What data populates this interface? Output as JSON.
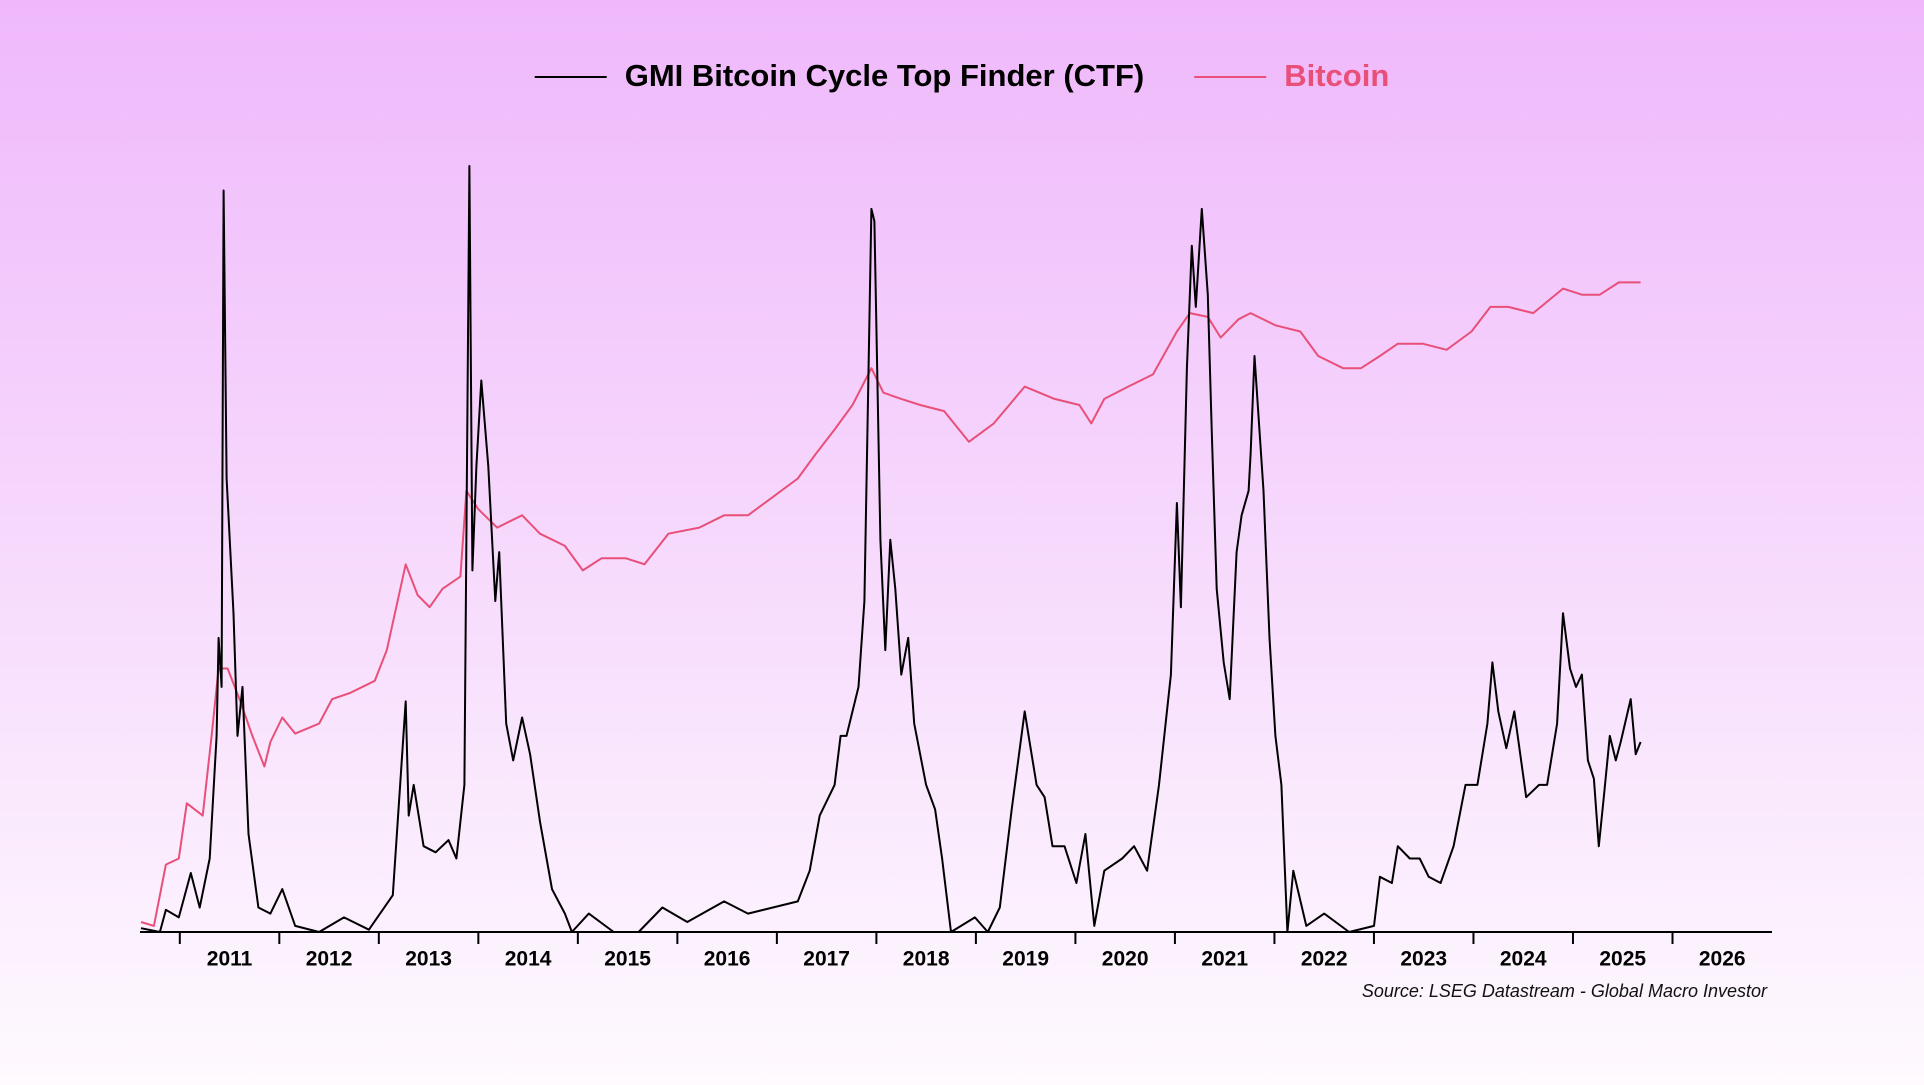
{
  "chart_data": {
    "type": "line",
    "series": [
      {
        "name": "GMI Bitcoin Cycle Top Finder (CTF)",
        "color": "#000000",
        "x": [
          2010.61,
          2010.8,
          2010.86,
          2010.99,
          2011.11,
          2011.2,
          2011.3,
          2011.37,
          2011.39,
          2011.42,
          2011.44,
          2011.47,
          2011.54,
          2011.58,
          2011.63,
          2011.69,
          2011.79,
          2011.91,
          2012.03,
          2012.16,
          2012.4,
          2012.65,
          2012.9,
          2013.14,
          2013.27,
          2013.3,
          2013.35,
          2013.45,
          2013.57,
          2013.7,
          2013.78,
          2013.86,
          2013.91,
          2013.94,
          2013.98,
          2014.03,
          2014.1,
          2014.17,
          2014.21,
          2014.28,
          2014.35,
          2014.44,
          2014.52,
          2014.62,
          2014.74,
          2014.87,
          2014.94,
          2015.11,
          2015.36,
          2015.61,
          2015.85,
          2016.1,
          2016.47,
          2016.71,
          2016.96,
          2017.21,
          2017.33,
          2017.43,
          2017.58,
          2017.64,
          2017.7,
          2017.82,
          2017.88,
          2017.95,
          2017.98,
          2018.04,
          2018.09,
          2018.14,
          2018.19,
          2018.25,
          2018.32,
          2018.38,
          2018.5,
          2018.59,
          2018.66,
          2018.75,
          2018.99,
          2019.12,
          2019.24,
          2019.36,
          2019.49,
          2019.55,
          2019.61,
          2019.69,
          2019.77,
          2019.89,
          2020.01,
          2020.1,
          2020.19,
          2020.29,
          2020.47,
          2020.59,
          2020.72,
          2020.84,
          2020.96,
          2021.02,
          2021.06,
          2021.12,
          2021.17,
          2021.21,
          2021.27,
          2021.33,
          2021.37,
          2021.42,
          2021.49,
          2021.55,
          2021.62,
          2021.67,
          2021.74,
          2021.76,
          2021.8,
          2021.89,
          2021.95,
          2022.01,
          2022.07,
          2022.13,
          2022.19,
          2022.32,
          2022.5,
          2022.75,
          2023.0,
          2023.06,
          2023.18,
          2023.24,
          2023.36,
          2023.46,
          2023.55,
          2023.67,
          2023.8,
          2023.92,
          2024.04,
          2024.14,
          2024.19,
          2024.25,
          2024.33,
          2024.41,
          2024.53,
          2024.66,
          2024.74,
          2024.84,
          2024.9,
          2024.97,
          2025.03,
          2025.09,
          2025.15,
          2025.21,
          2025.26,
          2025.31,
          2025.37,
          2025.43,
          2025.48,
          2025.58,
          2025.63,
          2025.68
        ],
        "values": [
          0.5,
          0,
          2.9,
          1.9,
          7.7,
          3.2,
          9.6,
          25.6,
          38.4,
          32,
          96.8,
          59.2,
          41.6,
          25.6,
          32,
          12.8,
          3.2,
          2.4,
          5.6,
          0.8,
          0,
          1.9,
          0.3,
          4.8,
          30.1,
          15.2,
          19.2,
          11.2,
          10.4,
          12,
          9.6,
          19.2,
          100,
          47.2,
          60.8,
          72,
          60.8,
          43.2,
          49.6,
          27.2,
          22.4,
          28,
          23.2,
          14.4,
          5.6,
          2.4,
          0,
          2.4,
          0,
          0,
          3.2,
          1.3,
          4,
          2.4,
          3.2,
          4,
          8,
          15.2,
          19.2,
          25.6,
          25.6,
          32,
          43.2,
          94.4,
          92.8,
          51.2,
          36.8,
          51.2,
          44.8,
          33.6,
          38.4,
          27.2,
          19.2,
          16,
          9.6,
          0,
          1.9,
          0,
          3.2,
          16,
          28.8,
          24,
          19.2,
          17.6,
          11.2,
          11.2,
          6.4,
          12.8,
          0.8,
          8,
          9.6,
          11.2,
          8,
          19.2,
          33.6,
          56,
          42.4,
          73.6,
          89.6,
          81.6,
          94.4,
          83.2,
          65.6,
          44.8,
          35.2,
          30.4,
          49.6,
          54.4,
          57.6,
          62.4,
          75.2,
          57.6,
          38.4,
          25.6,
          19.2,
          0,
          8,
          0.8,
          2.4,
          0,
          0.8,
          7.2,
          6.4,
          11.2,
          9.6,
          9.6,
          7.2,
          6.4,
          11.2,
          19.2,
          19.2,
          27.2,
          35.2,
          28.8,
          24,
          28.8,
          17.6,
          19.2,
          19.2,
          27.2,
          41.6,
          34.4,
          32,
          33.6,
          22.4,
          20,
          11.2,
          17.6,
          25.6,
          22.4,
          24.8,
          30.4,
          23.2,
          24.8
        ]
      },
      {
        "name": "Bitcoin",
        "color": "#e8507a",
        "x": [
          2010.61,
          2010.74,
          2010.86,
          2010.99,
          2011.07,
          2011.23,
          2011.32,
          2011.39,
          2011.48,
          2011.6,
          2011.73,
          2011.85,
          2011.91,
          2012.03,
          2012.16,
          2012.4,
          2012.53,
          2012.71,
          2012.96,
          2013.08,
          2013.27,
          2013.39,
          2013.51,
          2013.64,
          2013.82,
          2013.88,
          2014.0,
          2014.19,
          2014.44,
          2014.62,
          2014.87,
          2015.05,
          2015.24,
          2015.48,
          2015.67,
          2015.91,
          2016.22,
          2016.47,
          2016.71,
          2016.96,
          2017.21,
          2017.39,
          2017.58,
          2017.76,
          2017.95,
          2018.07,
          2018.25,
          2018.44,
          2018.68,
          2018.93,
          2019.18,
          2019.49,
          2019.79,
          2020.04,
          2020.16,
          2020.29,
          2020.53,
          2020.78,
          2021.02,
          2021.15,
          2021.33,
          2021.46,
          2021.64,
          2021.76,
          2022.01,
          2022.26,
          2022.44,
          2022.69,
          2022.87,
          2023.06,
          2023.24,
          2023.49,
          2023.73,
          2023.98,
          2024.17,
          2024.35,
          2024.6,
          2024.9,
          2025.09,
          2025.27,
          2025.46,
          2025.68
        ],
        "values": [
          1.3,
          0.8,
          8.8,
          9.6,
          16.8,
          15.2,
          25.6,
          34.4,
          34.4,
          30.4,
          25.6,
          21.6,
          24.8,
          28,
          25.9,
          27.2,
          30.4,
          31.2,
          32.8,
          36.8,
          48,
          44,
          42.4,
          44.8,
          46.4,
          57.6,
          55.2,
          52.8,
          54.4,
          52,
          50.4,
          47.2,
          48.8,
          48.8,
          48,
          52,
          52.8,
          54.4,
          54.4,
          56.8,
          59.2,
          62.4,
          65.6,
          68.8,
          73.6,
          70.4,
          69.6,
          68.8,
          68,
          64,
          66.4,
          71.2,
          69.6,
          68.8,
          66.4,
          69.6,
          71.2,
          72.8,
          78.4,
          80.8,
          80.3,
          77.6,
          80,
          80.8,
          79.2,
          78.4,
          75.2,
          73.6,
          73.6,
          75.2,
          76.8,
          76.8,
          76,
          78.4,
          81.6,
          81.6,
          80.8,
          84,
          83.2,
          83.2,
          84.8,
          84.8
        ]
      }
    ],
    "xlim": [
      2010.6,
      2027
    ],
    "xticks": [
      2011,
      2012,
      2013,
      2014,
      2015,
      2016,
      2017,
      2018,
      2019,
      2020,
      2021,
      2022,
      2023,
      2024,
      2025,
      2026
    ],
    "ylim": [
      0,
      100
    ],
    "annotations": [
      "Source: LSEG Datastream - Global Macro Investor"
    ]
  }
}
